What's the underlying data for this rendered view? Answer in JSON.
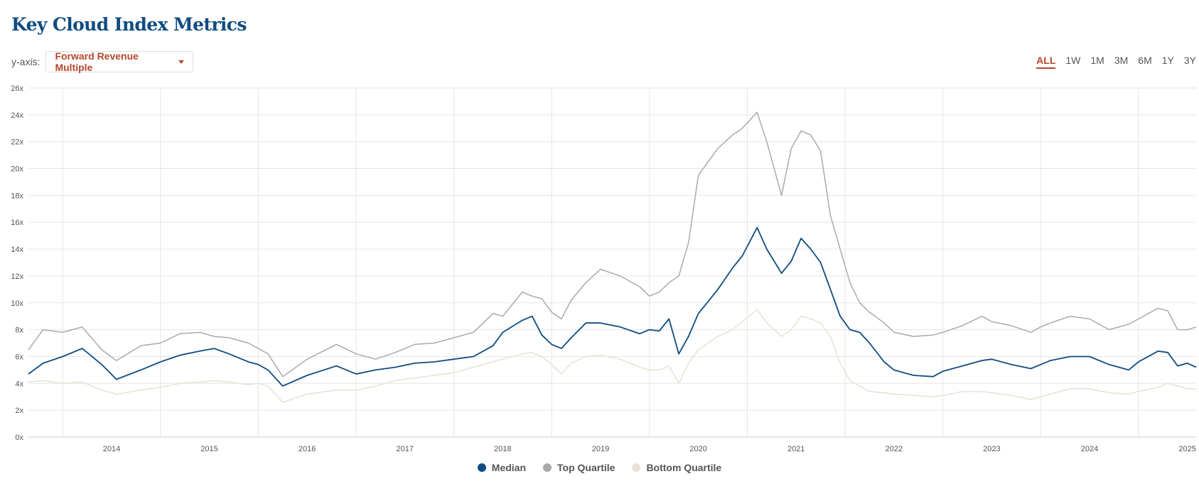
{
  "title": "Key Cloud Index Metrics",
  "controls": {
    "yaxis_label": "y-axis:",
    "yaxis_value": "Forward Revenue Multiple",
    "ranges": [
      "ALL",
      "1W",
      "1M",
      "3M",
      "6M",
      "1Y",
      "3Y"
    ],
    "active_range": "ALL"
  },
  "chart_data": {
    "type": "line",
    "ylim": [
      0,
      26
    ],
    "yticks": [
      0,
      2,
      4,
      6,
      8,
      10,
      12,
      14,
      16,
      18,
      20,
      22,
      24,
      26
    ],
    "ytick_labels": [
      "0x",
      "2x",
      "4x",
      "6x",
      "8x",
      "10x",
      "12x",
      "14x",
      "16x",
      "18x",
      "20x",
      "22x",
      "24x",
      "26x"
    ],
    "xlim": [
      2013.15,
      2025.09
    ],
    "xticks": [
      2014,
      2015,
      2016,
      2017,
      2018,
      2019,
      2020,
      2021,
      2022,
      2023,
      2024,
      2025
    ],
    "xtick_labels": [
      "2014",
      "2015",
      "2016",
      "2017",
      "2018",
      "2019",
      "2020",
      "2021",
      "2022",
      "2023",
      "2024",
      "2025"
    ],
    "grid": true,
    "legend_position": "bottom-center",
    "series": [
      {
        "name": "Median",
        "color": "#0f4c81",
        "x": [
          2013.15,
          2013.3,
          2013.5,
          2013.7,
          2013.9,
          2014.05,
          2014.3,
          2014.5,
          2014.7,
          2014.9,
          2015.05,
          2015.2,
          2015.4,
          2015.5,
          2015.6,
          2015.75,
          2016.0,
          2016.3,
          2016.5,
          2016.7,
          2016.9,
          2017.1,
          2017.3,
          2017.5,
          2017.7,
          2017.9,
          2018.0,
          2018.2,
          2018.3,
          2018.4,
          2018.5,
          2018.6,
          2018.7,
          2018.85,
          2019.0,
          2019.2,
          2019.4,
          2019.5,
          2019.6,
          2019.7,
          2019.8,
          2019.9,
          2020.0,
          2020.2,
          2020.35,
          2020.45,
          2020.6,
          2020.7,
          2020.85,
          2020.95,
          2021.05,
          2021.15,
          2021.25,
          2021.35,
          2021.45,
          2021.55,
          2021.65,
          2021.75,
          2021.9,
          2022.0,
          2022.2,
          2022.4,
          2022.5,
          2022.7,
          2022.9,
          2023.0,
          2023.2,
          2023.4,
          2023.5,
          2023.6,
          2023.8,
          2024.0,
          2024.2,
          2024.4,
          2024.5,
          2024.7,
          2024.8,
          2024.9,
          2025.0,
          2025.09
        ],
        "values": [
          4.7,
          5.5,
          6.0,
          6.6,
          5.4,
          4.3,
          5.0,
          5.6,
          6.1,
          6.4,
          6.6,
          6.2,
          5.6,
          5.4,
          5.0,
          3.8,
          4.6,
          5.3,
          4.7,
          5.0,
          5.2,
          5.5,
          5.6,
          5.8,
          6.0,
          6.8,
          7.8,
          8.7,
          9.0,
          7.6,
          6.9,
          6.6,
          7.4,
          8.5,
          8.5,
          8.2,
          7.7,
          8.0,
          7.9,
          8.8,
          6.2,
          7.5,
          9.2,
          11.0,
          12.6,
          13.5,
          15.6,
          14.0,
          12.2,
          13.1,
          14.8,
          14.0,
          13.0,
          11.0,
          9.0,
          8.0,
          7.8,
          7.0,
          5.6,
          5.0,
          4.6,
          4.5,
          4.9,
          5.3,
          5.7,
          5.8,
          5.4,
          5.1,
          5.4,
          5.7,
          6.0,
          6.0,
          5.4,
          5.0,
          5.6,
          6.4,
          6.3,
          5.3,
          5.5,
          5.2
        ]
      },
      {
        "name": "Top Quartile",
        "color": "#aaaaaa",
        "x": [
          2013.15,
          2013.3,
          2013.5,
          2013.7,
          2013.9,
          2014.05,
          2014.3,
          2014.5,
          2014.7,
          2014.9,
          2015.05,
          2015.2,
          2015.4,
          2015.5,
          2015.6,
          2015.75,
          2016.0,
          2016.3,
          2016.5,
          2016.7,
          2016.9,
          2017.1,
          2017.3,
          2017.5,
          2017.7,
          2017.9,
          2018.0,
          2018.2,
          2018.3,
          2018.4,
          2018.5,
          2018.6,
          2018.7,
          2018.85,
          2019.0,
          2019.2,
          2019.4,
          2019.5,
          2019.6,
          2019.7,
          2019.8,
          2019.9,
          2020.0,
          2020.2,
          2020.35,
          2020.45,
          2020.6,
          2020.7,
          2020.85,
          2020.95,
          2021.05,
          2021.15,
          2021.25,
          2021.35,
          2021.45,
          2021.55,
          2021.65,
          2021.75,
          2021.9,
          2022.0,
          2022.2,
          2022.4,
          2022.5,
          2022.7,
          2022.9,
          2023.0,
          2023.2,
          2023.4,
          2023.5,
          2023.6,
          2023.8,
          2024.0,
          2024.2,
          2024.4,
          2024.5,
          2024.7,
          2024.8,
          2024.9,
          2025.0,
          2025.09
        ],
        "values": [
          6.5,
          8.0,
          7.8,
          8.2,
          6.5,
          5.7,
          6.8,
          7.0,
          7.7,
          7.8,
          7.5,
          7.4,
          7.0,
          6.6,
          6.2,
          4.5,
          5.8,
          6.9,
          6.2,
          5.8,
          6.3,
          6.9,
          7.0,
          7.4,
          7.8,
          9.2,
          9.0,
          10.8,
          10.5,
          10.3,
          9.3,
          8.8,
          10.2,
          11.5,
          12.5,
          12.0,
          11.2,
          10.5,
          10.8,
          11.5,
          12.0,
          14.5,
          19.5,
          21.5,
          22.5,
          23.0,
          24.2,
          22.0,
          18.0,
          21.5,
          22.8,
          22.5,
          21.3,
          16.5,
          14.0,
          11.5,
          10.0,
          9.3,
          8.5,
          7.8,
          7.5,
          7.6,
          7.8,
          8.3,
          9.0,
          8.6,
          8.3,
          7.8,
          8.2,
          8.5,
          9.0,
          8.8,
          8.0,
          8.4,
          8.8,
          9.6,
          9.4,
          8.0,
          8.0,
          8.2
        ]
      },
      {
        "name": "Bottom Quartile",
        "color": "#e8e2d6",
        "x": [
          2013.15,
          2013.3,
          2013.5,
          2013.7,
          2013.9,
          2014.05,
          2014.3,
          2014.5,
          2014.7,
          2014.9,
          2015.05,
          2015.2,
          2015.4,
          2015.5,
          2015.6,
          2015.75,
          2016.0,
          2016.3,
          2016.5,
          2016.7,
          2016.9,
          2017.1,
          2017.3,
          2017.5,
          2017.7,
          2017.9,
          2018.0,
          2018.2,
          2018.3,
          2018.4,
          2018.5,
          2018.6,
          2018.7,
          2018.85,
          2019.0,
          2019.2,
          2019.4,
          2019.5,
          2019.6,
          2019.7,
          2019.8,
          2019.9,
          2020.0,
          2020.2,
          2020.35,
          2020.45,
          2020.6,
          2020.7,
          2020.85,
          2020.95,
          2021.05,
          2021.15,
          2021.25,
          2021.35,
          2021.45,
          2021.55,
          2021.65,
          2021.75,
          2021.9,
          2022.0,
          2022.2,
          2022.4,
          2022.5,
          2022.7,
          2022.9,
          2023.0,
          2023.2,
          2023.4,
          2023.5,
          2023.6,
          2023.8,
          2024.0,
          2024.2,
          2024.4,
          2024.5,
          2024.7,
          2024.8,
          2024.9,
          2025.0,
          2025.09
        ],
        "values": [
          4.1,
          4.2,
          4.0,
          4.1,
          3.5,
          3.2,
          3.5,
          3.7,
          4.0,
          4.1,
          4.2,
          4.1,
          3.9,
          4.0,
          3.8,
          2.6,
          3.2,
          3.5,
          3.5,
          3.8,
          4.2,
          4.4,
          4.6,
          4.8,
          5.2,
          5.6,
          5.8,
          6.2,
          6.3,
          6.0,
          5.4,
          4.7,
          5.5,
          6.0,
          6.1,
          5.8,
          5.2,
          5.0,
          5.0,
          5.3,
          4.0,
          5.5,
          6.5,
          7.5,
          8.0,
          8.6,
          9.5,
          8.5,
          7.5,
          8.0,
          9.0,
          8.8,
          8.5,
          7.5,
          5.5,
          4.2,
          3.8,
          3.4,
          3.3,
          3.2,
          3.1,
          3.0,
          3.1,
          3.4,
          3.4,
          3.3,
          3.1,
          2.8,
          3.0,
          3.2,
          3.6,
          3.6,
          3.3,
          3.2,
          3.4,
          3.7,
          4.0,
          3.8,
          3.6,
          3.6
        ]
      }
    ]
  }
}
